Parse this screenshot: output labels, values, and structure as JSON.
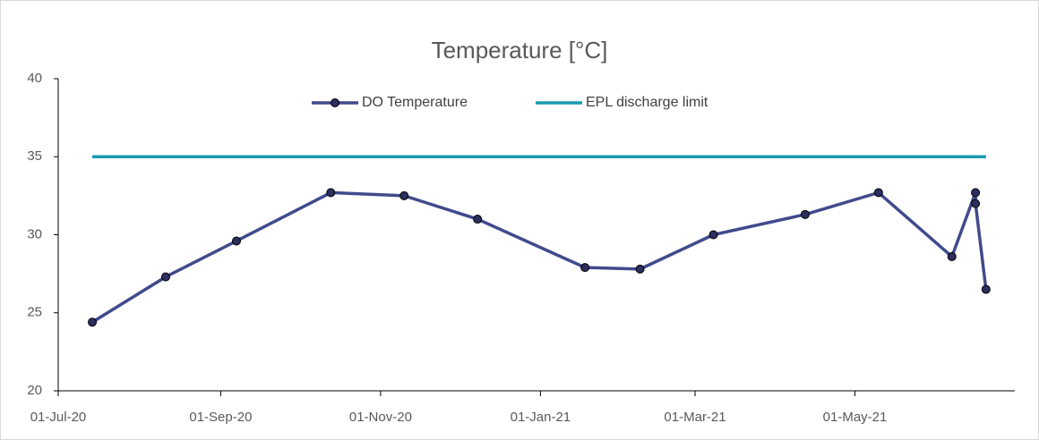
{
  "chart_data": {
    "type": "line",
    "title": "Temperature [°C]",
    "series": [
      {
        "name": "DO Temperature",
        "color": "#414a8c",
        "marker_color": "#2c2f5e",
        "x": [
          "2020-07-14",
          "2020-08-11",
          "2020-09-07",
          "2020-10-13",
          "2020-11-10",
          "2020-12-08",
          "2021-01-18",
          "2021-02-08",
          "2021-03-08",
          "2021-04-12",
          "2021-05-10",
          "2021-06-07",
          "2021-06-16",
          "2021-06-16",
          "2021-06-20"
        ],
        "values": [
          24.4,
          27.3,
          29.6,
          32.7,
          32.5,
          31.0,
          27.9,
          27.8,
          30.0,
          31.3,
          32.7,
          28.6,
          32.7,
          32.0,
          26.5
        ]
      },
      {
        "name": "EPL discharge limit",
        "color": "#1b9bb2",
        "x": [
          "2020-07-14",
          "2021-06-20"
        ],
        "values": [
          35,
          35
        ]
      }
    ],
    "xlim": [
      "2020-07-01",
      "2021-07-01"
    ],
    "xticks": [
      {
        "value": "2020-07-01",
        "label": "01-Jul-20"
      },
      {
        "value": "2020-09-01",
        "label": "01-Sep-20"
      },
      {
        "value": "2020-11-01",
        "label": "01-Nov-20"
      },
      {
        "value": "2021-01-01",
        "label": "01-Jan-21"
      },
      {
        "value": "2021-03-01",
        "label": "01-Mar-21"
      },
      {
        "value": "2021-05-01",
        "label": "01-May-21"
      }
    ],
    "ylim": [
      20,
      40
    ],
    "yticks": [
      20,
      25,
      30,
      35,
      40
    ],
    "grid": false,
    "legend": "top"
  }
}
